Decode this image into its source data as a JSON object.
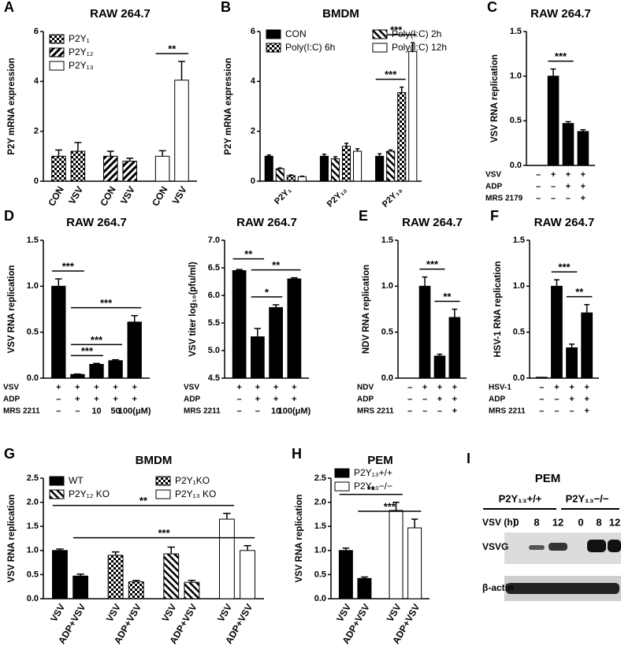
{
  "chart_data": [
    {
      "type": "bar",
      "panel": "A",
      "title": "RAW 264.7",
      "ylabel": "P2Y mRNA expression",
      "categories": [
        "CON",
        "VSV",
        "CON",
        "VSV",
        "CON",
        "VSV"
      ],
      "series": [
        {
          "name": "P2Y₁",
          "pattern": "checker",
          "values": [
            1.0,
            1.2,
            null,
            null,
            null,
            null
          ],
          "errors": [
            0.25,
            0.35,
            null,
            null,
            null,
            null
          ]
        },
        {
          "name": "P2Y₁₂",
          "pattern": "hatch",
          "values": [
            null,
            null,
            1.0,
            0.8,
            null,
            null
          ],
          "errors": [
            null,
            null,
            0.2,
            0.12,
            null,
            null
          ]
        },
        {
          "name": "P2Y₁₃",
          "pattern": "white",
          "values": [
            null,
            null,
            null,
            null,
            1.0,
            4.05
          ],
          "errors": [
            null,
            null,
            null,
            null,
            0.22,
            0.75
          ]
        }
      ],
      "ylim": [
        0,
        6
      ],
      "yticks": [
        0,
        2,
        4,
        6
      ],
      "legend": "upper left",
      "significance": [
        {
          "label": "**",
          "from": 4,
          "to": 5
        }
      ]
    },
    {
      "type": "bar",
      "panel": "B",
      "title": "BMDM",
      "ylabel": "P2Y mRNA expression",
      "categories": [
        "P2Y₁",
        "P2Y₁₂",
        "P2Y₁₃"
      ],
      "series": [
        {
          "name": "CON",
          "pattern": "solid",
          "values": [
            1.0,
            1.0,
            1.0
          ],
          "errors": [
            0.05,
            0.08,
            0.1
          ]
        },
        {
          "name": "Poly(I:C) 2h",
          "pattern": "backhatch",
          "values": [
            0.5,
            0.9,
            1.2
          ],
          "errors": [
            0.03,
            0.08,
            0.05
          ]
        },
        {
          "name": "Poly(I:C) 6h",
          "pattern": "checker",
          "values": [
            0.22,
            1.4,
            3.55
          ],
          "errors": [
            0.03,
            0.12,
            0.22
          ]
        },
        {
          "name": "Poly(I:C) 12h",
          "pattern": "white",
          "values": [
            0.18,
            1.2,
            5.2
          ],
          "errors": [
            0.02,
            0.1,
            0.35
          ]
        }
      ],
      "ylim": [
        0,
        6
      ],
      "yticks": [
        0,
        2,
        4,
        6
      ],
      "legend": "upper left",
      "significance": [
        {
          "label": "***",
          "from": 8,
          "to": 10
        },
        {
          "label": "***",
          "from": 8,
          "to": 11
        }
      ]
    },
    {
      "type": "bar",
      "panel": "C",
      "title": "RAW 264.7",
      "ylabel": "VSV RNA replication",
      "values": [
        0,
        1.0,
        0.47,
        0.38
      ],
      "errors": [
        0,
        0.08,
        0.02,
        0.02
      ],
      "pattern": "solid",
      "ylim": [
        0,
        1.5
      ],
      "yticks": [
        {
          "value": 0,
          "label": "0.0"
        },
        0.5,
        {
          "value": 1,
          "label": "1.0"
        },
        1.5
      ],
      "significance": [
        {
          "label": "***",
          "from": 1,
          "to": 2
        }
      ],
      "treatments": [
        {
          "label": "VSV",
          "marks": [
            "–",
            "+",
            "+",
            "+"
          ]
        },
        {
          "label": "ADP",
          "marks": [
            "–",
            "–",
            "+",
            "+"
          ]
        },
        {
          "label": "MRS 2179",
          "marks": [
            "–",
            "–",
            "–",
            "+"
          ]
        }
      ]
    },
    {
      "type": "bar",
      "panel": "D",
      "title": "RAW 264.7",
      "ylabel": "VSV RNA replication",
      "values": [
        1.0,
        0.04,
        0.15,
        0.19,
        0.61
      ],
      "errors": [
        0.08,
        0.005,
        0.01,
        0.01,
        0.07
      ],
      "pattern": "solid",
      "ylim": [
        0,
        1.5
      ],
      "yticks": [
        {
          "value": 0,
          "label": "0.0"
        },
        0.5,
        {
          "value": 1,
          "label": "1.0"
        },
        1.5
      ],
      "significance": [
        {
          "label": "***",
          "from": 1,
          "to": 2
        },
        {
          "label": "***",
          "from": 1,
          "to": 3
        },
        {
          "label": "***",
          "from": 1,
          "to": 4
        },
        {
          "label": "***",
          "from": 0,
          "to": 1
        }
      ],
      "treatments": [
        {
          "label": "VSV",
          "marks": [
            "+",
            "+",
            "+",
            "+",
            "+"
          ]
        },
        {
          "label": "ADP",
          "marks": [
            "–",
            "+",
            "+",
            "+",
            "+"
          ]
        },
        {
          "label": "MRS 2211",
          "marks": [
            "–",
            "–",
            "10",
            "50",
            "100(μM)"
          ]
        }
      ]
    },
    {
      "type": "bar",
      "title": "RAW 264.7",
      "ylabel": "VSV titer log₁₀(pfu/ml)",
      "values": [
        6.45,
        5.25,
        5.78,
        6.3
      ],
      "errors": [
        0.02,
        0.15,
        0.05,
        0.02
      ],
      "pattern": "solid",
      "ylim": [
        4.5,
        7.0
      ],
      "yticks": [
        4.5,
        {
          "value": 5,
          "label": "5.0"
        },
        5.5,
        {
          "value": 6,
          "label": "6.0"
        },
        6.5,
        {
          "value": 7,
          "label": "7.0"
        }
      ],
      "significance": [
        {
          "label": "*",
          "from": 1,
          "to": 2
        },
        {
          "label": "**",
          "from": 1,
          "to": 3
        },
        {
          "label": "**",
          "from": 0,
          "to": 1
        }
      ],
      "treatments": [
        {
          "label": "VSV",
          "marks": [
            "+",
            "+",
            "+",
            "+"
          ]
        },
        {
          "label": "ADP",
          "marks": [
            "–",
            "+",
            "+",
            "+"
          ]
        },
        {
          "label": "MRS 2211",
          "marks": [
            "–",
            "–",
            "10",
            "100(μM)"
          ]
        }
      ]
    },
    {
      "type": "bar",
      "panel": "E",
      "title": "RAW 264.7",
      "ylabel": "NDV RNA replication",
      "values": [
        0,
        1.0,
        0.24,
        0.66
      ],
      "errors": [
        0,
        0.1,
        0.02,
        0.09
      ],
      "pattern": "solid",
      "ylim": [
        0,
        1.5
      ],
      "yticks": [
        {
          "value": 0,
          "label": "0.0"
        },
        0.5,
        {
          "value": 1,
          "label": "1.0"
        },
        1.5
      ],
      "significance": [
        {
          "label": "***",
          "from": 1,
          "to": 2
        },
        {
          "label": "**",
          "from": 2,
          "to": 3
        }
      ],
      "treatments": [
        {
          "label": "NDV",
          "marks": [
            "–",
            "+",
            "+",
            "+"
          ]
        },
        {
          "label": "ADP",
          "marks": [
            "–",
            "–",
            "+",
            "+"
          ]
        },
        {
          "label": "MRS 2211",
          "marks": [
            "–",
            "–",
            "–",
            "+"
          ]
        }
      ]
    },
    {
      "type": "bar",
      "panel": "F",
      "title": "RAW 264.7",
      "ylabel": "HSV-1 RNA replication",
      "values": [
        0.01,
        1.0,
        0.33,
        0.71
      ],
      "errors": [
        0,
        0.07,
        0.04,
        0.09
      ],
      "pattern": "solid",
      "ylim": [
        0,
        1.5
      ],
      "yticks": [
        {
          "value": 0,
          "label": "0.0"
        },
        0.5,
        {
          "value": 1,
          "label": "1.0"
        },
        1.5
      ],
      "significance": [
        {
          "label": "***",
          "from": 1,
          "to": 2
        },
        {
          "label": "**",
          "from": 2,
          "to": 3
        }
      ],
      "treatments": [
        {
          "label": "HSV-1",
          "marks": [
            "–",
            "+",
            "+",
            "+"
          ]
        },
        {
          "label": "ADP",
          "marks": [
            "–",
            "–",
            "+",
            "+"
          ]
        },
        {
          "label": "MRS 2211",
          "marks": [
            "–",
            "–",
            "–",
            "+"
          ]
        }
      ]
    },
    {
      "type": "bar",
      "panel": "G",
      "title": "BMDM",
      "ylabel": "VSV RNA replication",
      "categories": [
        "VSV",
        "ADP+VSV",
        "VSV",
        "ADP+VSV",
        "VSV",
        "ADP+VSV",
        "VSV",
        "ADP+VSV"
      ],
      "series": [
        {
          "name": "WT",
          "pattern": "solid",
          "values": [
            1.0,
            0.47,
            null,
            null,
            null,
            null,
            null,
            null
          ],
          "errors": [
            0.03,
            0.04,
            null,
            null,
            null,
            null,
            null,
            null
          ]
        },
        {
          "name": "P2Y₁KO",
          "pattern": "checker",
          "values": [
            null,
            null,
            0.9,
            0.35,
            null,
            null,
            null,
            null
          ],
          "errors": [
            null,
            null,
            0.07,
            0.03,
            null,
            null,
            null,
            null
          ]
        },
        {
          "name": "P2Y₁₂ KO",
          "pattern": "backhatch",
          "values": [
            null,
            null,
            null,
            null,
            0.93,
            0.34,
            null,
            null
          ],
          "errors": [
            null,
            null,
            null,
            null,
            0.14,
            0.04,
            null,
            null
          ]
        },
        {
          "name": "P2Y₁₃ KO",
          "pattern": "white",
          "values": [
            null,
            null,
            null,
            null,
            null,
            null,
            1.65,
            1.0
          ],
          "errors": [
            null,
            null,
            null,
            null,
            null,
            null,
            0.12,
            0.1
          ]
        }
      ],
      "ylim": [
        0,
        2.5
      ],
      "yticks": [
        {
          "value": 0,
          "label": "0.0"
        },
        0.5,
        {
          "value": 1,
          "label": "1.0"
        },
        1.5,
        {
          "value": 2,
          "label": "2.0"
        },
        2.5
      ],
      "legend": "upper left",
      "significance": [
        {
          "label": "***",
          "from": 1,
          "to": 7
        },
        {
          "label": "**",
          "from": 0,
          "to": 6
        }
      ]
    },
    {
      "type": "bar",
      "panel": "H",
      "title": "PEM",
      "ylabel": "VSV RNA replication",
      "categories": [
        "VSV",
        "ADP+VSV",
        "VSV",
        "ADP+VSV"
      ],
      "series": [
        {
          "name": "P2Y₁₃+/+",
          "pattern": "solid",
          "values": [
            1.0,
            0.42,
            null,
            null
          ],
          "errors": [
            0.05,
            0.03,
            null,
            null
          ]
        },
        {
          "name": "P2Y₁₃−/−",
          "pattern": "white",
          "values": [
            null,
            null,
            1.83,
            1.47
          ],
          "errors": [
            null,
            null,
            0.17,
            0.18
          ]
        }
      ],
      "ylim": [
        0,
        2.5
      ],
      "yticks": [
        {
          "value": 0,
          "label": "0.0"
        },
        0.5,
        {
          "value": 1,
          "label": "1.0"
        },
        1.5,
        {
          "value": 2,
          "label": "2.0"
        },
        2.5
      ],
      "legend": "upper right",
      "significance": [
        {
          "label": "***",
          "from": 1,
          "to": 3
        },
        {
          "label": "**",
          "from": 0,
          "to": 2
        }
      ]
    }
  ],
  "blot": {
    "panel": "I",
    "title": "PEM",
    "groups": [
      "P2Y₁₃+/+",
      "P2Y₁₃−/−"
    ],
    "time_label": "VSV (h)",
    "times": [
      "0",
      "8",
      "12",
      "0",
      "8",
      "12"
    ],
    "rows": [
      "VSVG",
      "β-actin"
    ]
  }
}
